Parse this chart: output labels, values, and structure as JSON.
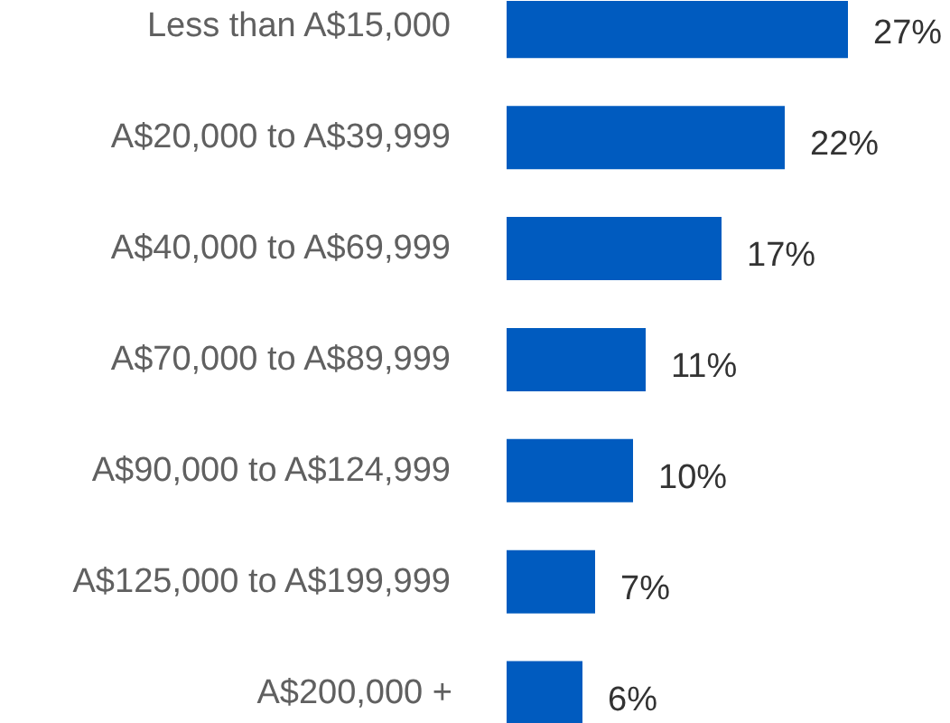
{
  "chart_data": {
    "type": "bar",
    "orientation": "horizontal",
    "categories": [
      "Less than A$15,000",
      "A$20,000 to A$39,999",
      "A$40,000 to A$69,999",
      "A$70,000 to A$89,999",
      "A$90,000 to A$124,999",
      "A$125,000 to A$199,999",
      "A$200,000 +"
    ],
    "values": [
      27,
      22,
      17,
      11,
      10,
      7,
      6
    ],
    "value_labels": [
      "27%",
      "22%",
      "17%",
      "11%",
      "10%",
      "7%",
      "6%"
    ],
    "color": "#005bbf",
    "grid": false,
    "tick_labels": false
  }
}
